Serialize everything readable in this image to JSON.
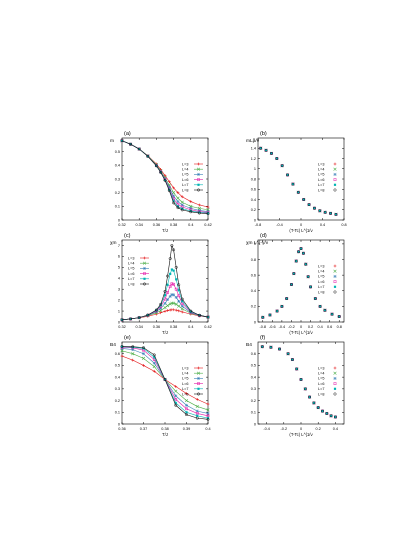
{
  "legend_labels": [
    "L=3",
    "L=4",
    "L=5",
    "L=6",
    "L=7",
    "L=8"
  ],
  "series_colors": [
    "#e41a1c",
    "#4daf4a",
    "#377eb8",
    "#e41aa8",
    "#00b3b3",
    "#111111"
  ],
  "chart_data": [
    {
      "panel": "(a)",
      "type": "line",
      "title": "",
      "ylabel": "m",
      "xlabel": "T/J",
      "xlim": [
        0.32,
        0.42
      ],
      "ylim": [
        0,
        0.6
      ],
      "xticks": [
        "0.32",
        "0.34",
        "0.36",
        "0.38",
        "0.4",
        "0.42"
      ],
      "yticks": [
        "0",
        "0.1",
        "0.2",
        "0.3",
        "0.4",
        "0.5"
      ],
      "legend": "right",
      "x": [
        0.32,
        0.33,
        0.34,
        0.35,
        0.36,
        0.365,
        0.37,
        0.375,
        0.38,
        0.385,
        0.39,
        0.4,
        0.41,
        0.42
      ],
      "series": [
        {
          "name": "L=3",
          "values": [
            0.58,
            0.555,
            0.52,
            0.47,
            0.41,
            0.37,
            0.325,
            0.28,
            0.235,
            0.2,
            0.17,
            0.135,
            0.11,
            0.095
          ]
        },
        {
          "name": "L=4",
          "values": [
            0.58,
            0.555,
            0.52,
            0.47,
            0.405,
            0.36,
            0.31,
            0.255,
            0.2,
            0.16,
            0.13,
            0.1,
            0.085,
            0.075
          ]
        },
        {
          "name": "L=5",
          "values": [
            0.58,
            0.555,
            0.52,
            0.468,
            0.4,
            0.355,
            0.302,
            0.24,
            0.175,
            0.135,
            0.11,
            0.085,
            0.07,
            0.062
          ]
        },
        {
          "name": "L=6",
          "values": [
            0.58,
            0.554,
            0.519,
            0.467,
            0.398,
            0.352,
            0.297,
            0.23,
            0.155,
            0.115,
            0.095,
            0.075,
            0.062,
            0.055
          ]
        },
        {
          "name": "L=7",
          "values": [
            0.58,
            0.554,
            0.519,
            0.466,
            0.397,
            0.35,
            0.293,
            0.222,
            0.14,
            0.1,
            0.083,
            0.066,
            0.056,
            0.05
          ]
        },
        {
          "name": "L=8",
          "values": [
            0.58,
            0.554,
            0.519,
            0.466,
            0.396,
            0.348,
            0.29,
            0.215,
            0.125,
            0.09,
            0.074,
            0.06,
            0.051,
            0.046
          ]
        }
      ]
    },
    {
      "panel": "(b)",
      "type": "scatter",
      "title": "",
      "ylabel": "mL^{β/ν}",
      "xlabel": "(T-T_c) L^{1/ν}",
      "xlim": [
        -0.8,
        0.8
      ],
      "ylim": [
        0,
        1.6
      ],
      "xticks": [
        "-0.8",
        "-0.4",
        "0",
        "0.4",
        "0.8"
      ],
      "yticks": [
        "0",
        "0.2",
        "0.4",
        "0.6",
        "0.8",
        "1",
        "1.2",
        "1.4"
      ],
      "legend": "right",
      "x": [
        -0.75,
        -0.65,
        -0.55,
        -0.45,
        -0.35,
        -0.25,
        -0.15,
        -0.05,
        0.05,
        0.15,
        0.25,
        0.35,
        0.45,
        0.55,
        0.65
      ],
      "series": [
        {
          "name": "L=3",
          "values": [
            1.4,
            1.36,
            1.3,
            1.2,
            1.06,
            0.88,
            0.7,
            0.54,
            0.4,
            0.3,
            0.23,
            0.18,
            0.15,
            0.13,
            0.11
          ]
        },
        {
          "name": "L=4",
          "values": [
            1.4,
            1.36,
            1.3,
            1.2,
            1.06,
            0.88,
            0.7,
            0.54,
            0.4,
            0.3,
            0.23,
            0.18,
            0.15,
            0.13,
            0.11
          ]
        },
        {
          "name": "L=5",
          "values": [
            1.4,
            1.36,
            1.3,
            1.2,
            1.06,
            0.88,
            0.7,
            0.54,
            0.4,
            0.3,
            0.23,
            0.18,
            0.15,
            0.13,
            0.11
          ]
        },
        {
          "name": "L=6",
          "values": [
            1.4,
            1.36,
            1.3,
            1.2,
            1.06,
            0.88,
            0.7,
            0.54,
            0.4,
            0.3,
            0.23,
            0.18,
            0.15,
            0.13,
            0.11
          ]
        },
        {
          "name": "L=7",
          "values": [
            1.4,
            1.36,
            1.3,
            1.2,
            1.06,
            0.88,
            0.7,
            0.54,
            0.4,
            0.3,
            0.23,
            0.18,
            0.15,
            0.13,
            0.11
          ]
        },
        {
          "name": "L=8",
          "values": [
            1.4,
            1.36,
            1.3,
            1.2,
            1.06,
            0.88,
            0.7,
            0.54,
            0.4,
            0.3,
            0.23,
            0.18,
            0.15,
            0.13,
            0.11
          ]
        }
      ]
    },
    {
      "panel": "(c)",
      "type": "line",
      "title": "",
      "ylabel": "χ_m",
      "xlabel": "T/J",
      "xlim": [
        0.32,
        0.42
      ],
      "ylim": [
        0,
        7.5
      ],
      "xticks": [
        "0.32",
        "0.34",
        "0.36",
        "0.38",
        "0.4",
        "0.42"
      ],
      "yticks": [
        "0",
        "1",
        "2",
        "3",
        "4",
        "5",
        "6",
        "7"
      ],
      "legend": "left",
      "x": [
        0.32,
        0.33,
        0.34,
        0.35,
        0.36,
        0.365,
        0.37,
        0.373,
        0.376,
        0.378,
        0.38,
        0.383,
        0.386,
        0.39,
        0.4,
        0.41,
        0.42
      ],
      "series": [
        {
          "name": "L=3",
          "values": [
            0.2,
            0.28,
            0.38,
            0.52,
            0.72,
            0.85,
            0.98,
            1.05,
            1.1,
            1.12,
            1.12,
            1.08,
            1.02,
            0.92,
            0.72,
            0.55,
            0.45
          ]
        },
        {
          "name": "L=4",
          "values": [
            0.2,
            0.28,
            0.4,
            0.58,
            0.85,
            1.05,
            1.32,
            1.5,
            1.65,
            1.72,
            1.72,
            1.62,
            1.45,
            1.2,
            0.8,
            0.58,
            0.45
          ]
        },
        {
          "name": "L=5",
          "values": [
            0.2,
            0.28,
            0.4,
            0.6,
            0.95,
            1.25,
            1.7,
            2.05,
            2.35,
            2.5,
            2.48,
            2.25,
            1.9,
            1.45,
            0.85,
            0.6,
            0.45
          ]
        },
        {
          "name": "L=6",
          "values": [
            0.2,
            0.28,
            0.4,
            0.62,
            1.02,
            1.4,
            2.1,
            2.7,
            3.25,
            3.5,
            3.45,
            3.0,
            2.4,
            1.7,
            0.9,
            0.6,
            0.45
          ]
        },
        {
          "name": "L=7",
          "values": [
            0.2,
            0.28,
            0.4,
            0.63,
            1.07,
            1.52,
            2.45,
            3.4,
            4.4,
            4.8,
            4.7,
            3.9,
            2.9,
            1.9,
            0.95,
            0.62,
            0.45
          ]
        },
        {
          "name": "L=8",
          "values": [
            0.2,
            0.28,
            0.4,
            0.64,
            1.1,
            1.62,
            2.8,
            4.2,
            5.8,
            7.0,
            6.6,
            5.0,
            3.4,
            2.1,
            1.0,
            0.62,
            0.45
          ]
        }
      ]
    },
    {
      "panel": "(d)",
      "type": "scatter",
      "title": "",
      "ylabel": "χ_m L^{-γ/ν}",
      "xlabel": "(T-T_c) L^{1/ν}",
      "xlim": [
        -0.9,
        0.9
      ],
      "ylim": [
        0,
        1.05
      ],
      "xticks": [
        "-0.8",
        "-0.6",
        "-0.4",
        "-0.2",
        "0",
        "0.2",
        "0.4",
        "0.6",
        "0.8"
      ],
      "yticks": [
        "0",
        "0.2",
        "0.4",
        "0.6",
        "0.8",
        "1"
      ],
      "legend": "right",
      "x": [
        -0.8,
        -0.65,
        -0.5,
        -0.4,
        -0.3,
        -0.2,
        -0.15,
        -0.1,
        -0.05,
        0,
        0.05,
        0.1,
        0.15,
        0.2,
        0.3,
        0.4,
        0.5,
        0.65,
        0.8
      ],
      "series": [
        {
          "name": "L=3",
          "values": [
            0.06,
            0.09,
            0.14,
            0.2,
            0.3,
            0.48,
            0.62,
            0.78,
            0.9,
            0.94,
            0.88,
            0.74,
            0.58,
            0.45,
            0.3,
            0.2,
            0.15,
            0.1,
            0.07
          ]
        },
        {
          "name": "L=4",
          "values": [
            0.06,
            0.09,
            0.14,
            0.2,
            0.3,
            0.48,
            0.62,
            0.78,
            0.9,
            0.94,
            0.88,
            0.74,
            0.58,
            0.45,
            0.3,
            0.2,
            0.15,
            0.1,
            0.07
          ]
        },
        {
          "name": "L=5",
          "values": [
            0.06,
            0.09,
            0.14,
            0.2,
            0.3,
            0.48,
            0.62,
            0.78,
            0.9,
            0.94,
            0.88,
            0.74,
            0.58,
            0.45,
            0.3,
            0.2,
            0.15,
            0.1,
            0.07
          ]
        },
        {
          "name": "L=6",
          "values": [
            0.06,
            0.09,
            0.14,
            0.2,
            0.3,
            0.48,
            0.62,
            0.78,
            0.9,
            0.94,
            0.88,
            0.74,
            0.58,
            0.45,
            0.3,
            0.2,
            0.15,
            0.1,
            0.07
          ]
        },
        {
          "name": "L=7",
          "values": [
            0.06,
            0.09,
            0.14,
            0.2,
            0.3,
            0.48,
            0.62,
            0.78,
            0.9,
            0.94,
            0.88,
            0.74,
            0.58,
            0.45,
            0.3,
            0.2,
            0.15,
            0.1,
            0.07
          ]
        },
        {
          "name": "L=8",
          "values": [
            0.06,
            0.09,
            0.14,
            0.2,
            0.3,
            0.48,
            0.62,
            0.78,
            0.9,
            0.94,
            0.88,
            0.74,
            0.58,
            0.45,
            0.3,
            0.2,
            0.15,
            0.1,
            0.07
          ]
        }
      ]
    },
    {
      "panel": "(e)",
      "type": "line",
      "title": "",
      "ylabel": "B_4",
      "xlabel": "T/J",
      "xlim": [
        0.36,
        0.4
      ],
      "ylim": [
        0,
        0.7
      ],
      "xticks": [
        "0.36",
        "0.37",
        "0.38",
        "0.39",
        "0.4"
      ],
      "yticks": [
        "0",
        "0.1",
        "0.2",
        "0.3",
        "0.4",
        "0.5",
        "0.6"
      ],
      "legend": "right",
      "x": [
        0.36,
        0.365,
        0.37,
        0.375,
        0.38,
        0.385,
        0.39,
        0.395,
        0.4
      ],
      "series": [
        {
          "name": "L=3",
          "values": [
            0.58,
            0.545,
            0.5,
            0.45,
            0.38,
            0.32,
            0.26,
            0.21,
            0.17
          ]
        },
        {
          "name": "L=4",
          "values": [
            0.625,
            0.6,
            0.56,
            0.49,
            0.38,
            0.28,
            0.2,
            0.15,
            0.12
          ]
        },
        {
          "name": "L=5",
          "values": [
            0.645,
            0.635,
            0.6,
            0.52,
            0.38,
            0.24,
            0.16,
            0.11,
            0.09
          ]
        },
        {
          "name": "L=6",
          "values": [
            0.655,
            0.65,
            0.63,
            0.55,
            0.38,
            0.21,
            0.13,
            0.09,
            0.07
          ]
        },
        {
          "name": "L=7",
          "values": [
            0.66,
            0.655,
            0.645,
            0.57,
            0.38,
            0.18,
            0.1,
            0.07,
            0.05
          ]
        },
        {
          "name": "L=8",
          "values": [
            0.662,
            0.66,
            0.652,
            0.59,
            0.38,
            0.16,
            0.08,
            0.05,
            0.04
          ]
        }
      ]
    },
    {
      "panel": "(f)",
      "type": "scatter",
      "title": "",
      "ylabel": "B_4",
      "xlabel": "(T-T_c) L^{1/ν}",
      "xlim": [
        -0.5,
        0.5
      ],
      "ylim": [
        0,
        0.7
      ],
      "xticks": [
        "-0.4",
        "-0.2",
        "0",
        "0.2",
        "0.4"
      ],
      "yticks": [
        "0",
        "0.1",
        "0.2",
        "0.3",
        "0.4",
        "0.5",
        "0.6"
      ],
      "legend": "right",
      "x": [
        -0.45,
        -0.35,
        -0.25,
        -0.15,
        -0.1,
        -0.05,
        0,
        0.05,
        0.1,
        0.15,
        0.2,
        0.25,
        0.3,
        0.35,
        0.4
      ],
      "series": [
        {
          "name": "L=3",
          "values": [
            0.66,
            0.655,
            0.64,
            0.6,
            0.55,
            0.47,
            0.38,
            0.3,
            0.23,
            0.18,
            0.14,
            0.11,
            0.09,
            0.07,
            0.06
          ]
        },
        {
          "name": "L=4",
          "values": [
            0.66,
            0.655,
            0.64,
            0.6,
            0.55,
            0.47,
            0.38,
            0.3,
            0.23,
            0.18,
            0.14,
            0.11,
            0.09,
            0.07,
            0.06
          ]
        },
        {
          "name": "L=5",
          "values": [
            0.66,
            0.655,
            0.64,
            0.6,
            0.55,
            0.47,
            0.38,
            0.3,
            0.23,
            0.18,
            0.14,
            0.11,
            0.09,
            0.07,
            0.06
          ]
        },
        {
          "name": "L=6",
          "values": [
            0.66,
            0.655,
            0.64,
            0.6,
            0.55,
            0.47,
            0.38,
            0.3,
            0.23,
            0.18,
            0.14,
            0.11,
            0.09,
            0.07,
            0.06
          ]
        },
        {
          "name": "L=7",
          "values": [
            0.66,
            0.655,
            0.64,
            0.6,
            0.55,
            0.47,
            0.38,
            0.3,
            0.23,
            0.18,
            0.14,
            0.11,
            0.09,
            0.07,
            0.06
          ]
        },
        {
          "name": "L=8",
          "values": [
            0.66,
            0.655,
            0.64,
            0.6,
            0.55,
            0.47,
            0.38,
            0.3,
            0.23,
            0.18,
            0.14,
            0.11,
            0.09,
            0.07,
            0.06
          ]
        }
      ]
    }
  ]
}
